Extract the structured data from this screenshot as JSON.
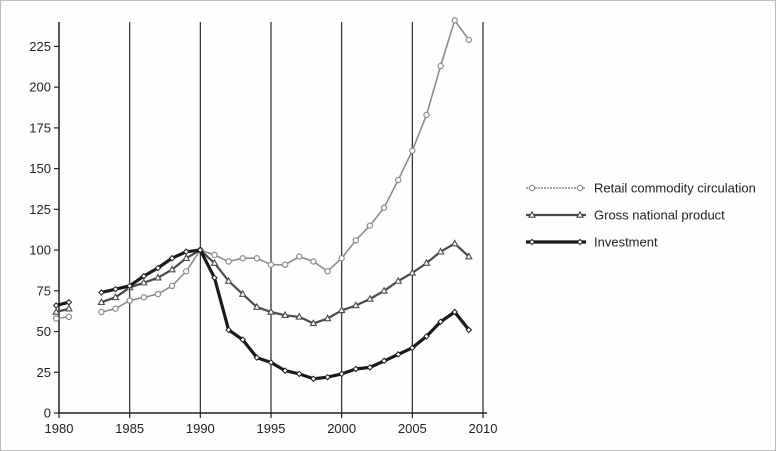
{
  "chart_data": {
    "type": "line",
    "title": "",
    "xlabel": "",
    "ylabel": "",
    "xlim": [
      1980,
      2010
    ],
    "ylim": [
      0,
      240
    ],
    "x_ticks": [
      1980,
      1985,
      1990,
      1995,
      2000,
      2005,
      2010
    ],
    "y_ticks": [
      0,
      25,
      50,
      75,
      100,
      125,
      150,
      175,
      200,
      225
    ],
    "grid": "vertical lines at x ticks",
    "legend_position": "right",
    "series": [
      {
        "name": "Retail commodity circulation",
        "marker": "circle",
        "style": "light",
        "segments": [
          [
            [
              1979.8,
              58
            ],
            [
              1980.7,
              59
            ]
          ],
          [
            [
              1983,
              62
            ],
            [
              1984,
              64
            ],
            [
              1985,
              69
            ],
            [
              1986,
              71
            ],
            [
              1987,
              73
            ],
            [
              1988,
              78
            ],
            [
              1989,
              87
            ],
            [
              1990,
              100
            ],
            [
              1991,
              97
            ],
            [
              1992,
              93
            ],
            [
              1993,
              95
            ],
            [
              1994,
              95
            ],
            [
              1995,
              91
            ],
            [
              1996,
              91
            ],
            [
              1997,
              96
            ],
            [
              1998,
              93
            ],
            [
              1999,
              87
            ],
            [
              2000,
              95
            ],
            [
              2001,
              106
            ],
            [
              2002,
              115
            ],
            [
              2003,
              126
            ],
            [
              2004,
              143
            ],
            [
              2005,
              161
            ],
            [
              2006,
              183
            ],
            [
              2007,
              213
            ],
            [
              2008,
              241
            ],
            [
              2009,
              229
            ]
          ]
        ]
      },
      {
        "name": "Gross national product",
        "marker": "triangle",
        "style": "medium",
        "segments": [
          [
            [
              1979.8,
              62
            ],
            [
              1980.7,
              64
            ]
          ],
          [
            [
              1983,
              68
            ],
            [
              1984,
              71
            ],
            [
              1985,
              77
            ],
            [
              1986,
              80
            ],
            [
              1987,
              83
            ],
            [
              1988,
              88
            ],
            [
              1989,
              95
            ],
            [
              1990,
              100
            ],
            [
              1991,
              92
            ],
            [
              1992,
              81
            ],
            [
              1993,
              73
            ],
            [
              1994,
              65
            ],
            [
              1995,
              62
            ],
            [
              1996,
              60
            ],
            [
              1997,
              59
            ],
            [
              1998,
              55
            ],
            [
              1999,
              58
            ],
            [
              2000,
              63
            ],
            [
              2001,
              66
            ],
            [
              2002,
              70
            ],
            [
              2003,
              75
            ],
            [
              2004,
              81
            ],
            [
              2005,
              86
            ],
            [
              2006,
              92
            ],
            [
              2007,
              99
            ],
            [
              2008,
              104
            ],
            [
              2009,
              96
            ]
          ]
        ]
      },
      {
        "name": "Investment",
        "marker": "diamond",
        "style": "heavy",
        "segments": [
          [
            [
              1979.8,
              66
            ],
            [
              1980.7,
              68
            ]
          ],
          [
            [
              1983,
              74
            ],
            [
              1984,
              76
            ],
            [
              1985,
              78
            ],
            [
              1986,
              84
            ],
            [
              1987,
              89
            ],
            [
              1988,
              95
            ],
            [
              1989,
              99
            ],
            [
              1990,
              100
            ],
            [
              1991,
              83
            ],
            [
              1992,
              51
            ],
            [
              1993,
              45
            ],
            [
              1994,
              34
            ],
            [
              1995,
              31
            ],
            [
              1996,
              26
            ],
            [
              1997,
              24
            ],
            [
              1998,
              21
            ],
            [
              1999,
              22
            ],
            [
              2000,
              24
            ],
            [
              2001,
              27
            ],
            [
              2002,
              28
            ],
            [
              2003,
              32
            ],
            [
              2004,
              36
            ],
            [
              2005,
              40
            ],
            [
              2006,
              47
            ],
            [
              2007,
              56
            ],
            [
              2008,
              62
            ],
            [
              2009,
              51
            ]
          ]
        ]
      }
    ]
  },
  "colors": {
    "axis": "#222222",
    "grid": "#2a2a2a",
    "retail": "#8a8a8a",
    "gnp": "#4a4a4a",
    "investment": "#1a1a1a"
  }
}
